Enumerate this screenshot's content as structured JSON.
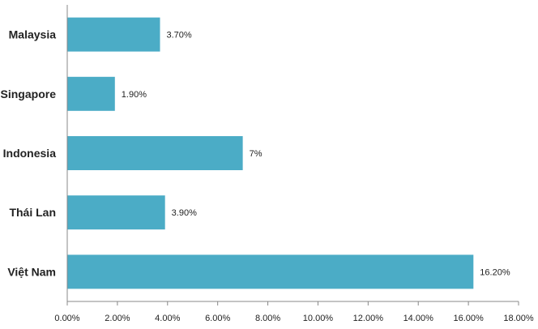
{
  "chart_data": {
    "type": "bar",
    "orientation": "horizontal",
    "categories": [
      "Malaysia",
      "Singapore",
      "Indonesia",
      "Thái Lan",
      "Việt Nam"
    ],
    "values": [
      3.7,
      1.9,
      7,
      3.9,
      16.2
    ],
    "data_labels": [
      "3.70%",
      "1.90%",
      "7%",
      "3.90%",
      "16.20%"
    ],
    "x_ticks": [
      "0.00%",
      "2.00%",
      "4.00%",
      "6.00%",
      "8.00%",
      "10.00%",
      "12.00%",
      "14.00%",
      "16.00%",
      "18.00%"
    ],
    "xlim": [
      0,
      18
    ],
    "bar_color": "#4BACC6",
    "grid": false,
    "legend": "none"
  }
}
